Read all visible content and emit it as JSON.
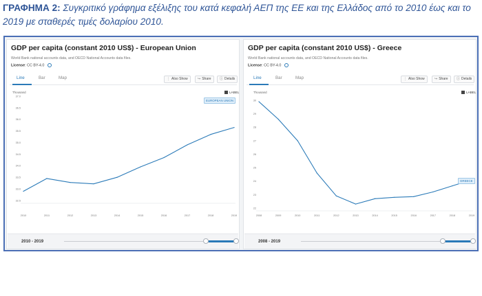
{
  "caption": {
    "label": "ΓΡΑΦΗΜΑ 2:",
    "text": "Συγκριτικό γράφημα εξέλιξης του κατά κεφαλή ΑΕΠ της ΕΕ και της Ελλάδος από το 2010 έως και το 2019 με σταθερές τιμές δολαρίου 2010."
  },
  "colors": {
    "accent": "#2a7ab8",
    "frame": "#4a6eb5",
    "caption": "#2f5597"
  },
  "panels": [
    {
      "title": "GDP per capita (constant 2010 US$) - European Union",
      "source": "World Bank national accounts data, and OECD National Accounts data files.",
      "license_label": "License",
      "license_value": ": CC BY-4.0",
      "tabs": [
        "Line",
        "Bar",
        "Map"
      ],
      "active_tab": "Line",
      "tools": {
        "also_show": "Also Show",
        "share": "Share",
        "details": "Details"
      },
      "unit": "Thousand",
      "label_toggle": "LABEL",
      "series_tag": "EUROPEAN UNION",
      "range_text": "2010 - 2019"
    },
    {
      "title": "GDP per capita (constant 2010 US$) - Greece",
      "source": "World Bank national accounts data, and OECD National Accounts data files.",
      "license_label": "License",
      "license_value": ": CC BY-4.0",
      "tabs": [
        "Line",
        "Bar",
        "Map"
      ],
      "active_tab": "Line",
      "tools": {
        "also_show": "Also Show",
        "share": "Share",
        "details": "Details"
      },
      "unit": "Thousand",
      "label_toggle": "LABEL",
      "series_tag": "GREECE",
      "range_text": "2008 - 2019"
    }
  ],
  "chart_data": [
    {
      "type": "line",
      "x": [
        2010,
        2011,
        2012,
        2013,
        2014,
        2015,
        2016,
        2017,
        2018,
        2019
      ],
      "series": [
        {
          "name": "EUROPEAN UNION",
          "values": [
            32.9,
            33.45,
            33.28,
            33.22,
            33.5,
            33.95,
            34.35,
            34.9,
            35.35,
            35.65
          ]
        }
      ],
      "yticks": [
        "32.5",
        "33.0",
        "33.5",
        "34.0",
        "34.5",
        "35.0",
        "35.5",
        "36.0",
        "36.5",
        "37.0"
      ],
      "ylim": [
        32.5,
        37.0
      ],
      "xticks": [
        "2010",
        "2011",
        "2012",
        "2013",
        "2014",
        "2015",
        "2016",
        "2017",
        "2018",
        "2019"
      ],
      "ylabel": "Thousand",
      "grid": false
    },
    {
      "type": "line",
      "x": [
        2008,
        2009,
        2010,
        2011,
        2012,
        2013,
        2014,
        2015,
        2016,
        2017,
        2018,
        2019
      ],
      "series": [
        {
          "name": "GREECE",
          "values": [
            29.9,
            28.6,
            27.0,
            24.6,
            22.9,
            22.3,
            22.7,
            22.8,
            22.85,
            23.2,
            23.65,
            24.1
          ]
        }
      ],
      "yticks": [
        "22",
        "23",
        "24",
        "25",
        "26",
        "27",
        "28",
        "29",
        "30"
      ],
      "ylim": [
        22,
        30
      ],
      "xticks": [
        "2008",
        "2009",
        "2010",
        "2011",
        "2012",
        "2013",
        "2014",
        "2015",
        "2016",
        "2017",
        "2018",
        "2019"
      ],
      "ylabel": "Thousand",
      "grid": false
    }
  ]
}
